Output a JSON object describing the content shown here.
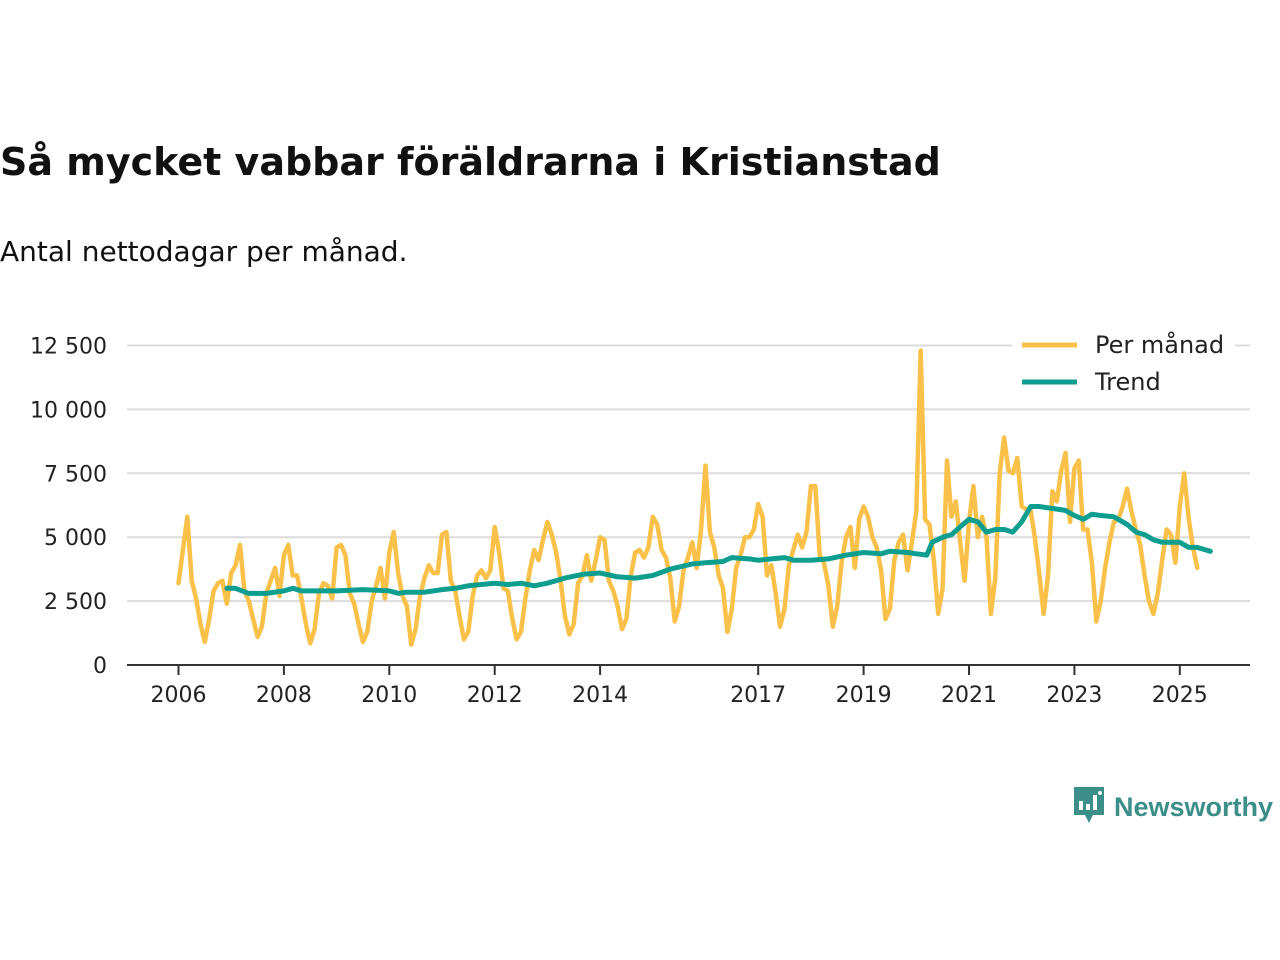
{
  "header": {
    "title": "Så mycket vabbar föräldrarna i Kristianstad",
    "subtitle": "Antal nettodagar per månad."
  },
  "brand": {
    "name": "Newsworthy",
    "icon": "bar-chart-speech-bubble-icon",
    "color": "#3c8f88"
  },
  "colors": {
    "monthly": "#f9c14a",
    "trend": "#0e9e8f",
    "grid": "#dcdcdc",
    "axis": "#333333"
  },
  "chart_data": {
    "type": "line",
    "title": "Så mycket vabbar föräldrarna i Kristianstad",
    "subtitle": "Antal nettodagar per månad.",
    "xlabel": "",
    "ylabel": "",
    "ylim": [
      0,
      12500
    ],
    "xlim": [
      2005.25,
      2026.3
    ],
    "grid": true,
    "legend_position": "top-right",
    "y_ticks": [
      {
        "value": 0,
        "label": "0"
      },
      {
        "value": 2500,
        "label": "2 500"
      },
      {
        "value": 5000,
        "label": "5 000"
      },
      {
        "value": 7500,
        "label": "7 500"
      },
      {
        "value": 10000,
        "label": "10 000"
      },
      {
        "value": 12500,
        "label": "12 500"
      }
    ],
    "x_ticks": [
      {
        "value": 2006,
        "label": "2006"
      },
      {
        "value": 2008,
        "label": "2008"
      },
      {
        "value": 2010,
        "label": "2010"
      },
      {
        "value": 2012,
        "label": "2012"
      },
      {
        "value": 2014,
        "label": "2014"
      },
      {
        "value": 2017,
        "label": "2017"
      },
      {
        "value": 2019,
        "label": "2019"
      },
      {
        "value": 2021,
        "label": "2021"
      },
      {
        "value": 2023,
        "label": "2023"
      },
      {
        "value": 2025,
        "label": "2025"
      }
    ],
    "series": [
      {
        "name": "Per månad",
        "color": "#f9c14a",
        "x_start": 2006.0,
        "x_step": 0.08333,
        "values": [
          3200,
          4500,
          5800,
          3300,
          2600,
          1600,
          900,
          1800,
          2900,
          3200,
          3300,
          2400,
          3600,
          3900,
          4700,
          2900,
          2500,
          1800,
          1100,
          1500,
          2800,
          3300,
          3800,
          2700,
          4300,
          4700,
          3500,
          3500,
          2600,
          1600,
          850,
          1400,
          2800,
          3200,
          3100,
          2600,
          4600,
          4700,
          4300,
          2800,
          2400,
          1600,
          900,
          1300,
          2500,
          3100,
          3800,
          2600,
          4400,
          5200,
          3600,
          2700,
          2300,
          800,
          1400,
          2700,
          3400,
          3900,
          3600,
          3600,
          5100,
          5200,
          3300,
          2900,
          1900,
          1000,
          1300,
          2700,
          3500,
          3700,
          3400,
          3700,
          5400,
          4400,
          3000,
          2900,
          1800,
          1000,
          1300,
          2600,
          3700,
          4500,
          4100,
          4900,
          5600,
          5100,
          4400,
          3300,
          1900,
          1200,
          1600,
          3200,
          3500,
          4300,
          3300,
          4100,
          5000,
          4900,
          3300,
          2900,
          2300,
          1400,
          1800,
          3500,
          4400,
          4500,
          4200,
          4600,
          5800,
          5500,
          4500,
          4200,
          3400,
          1700,
          2300,
          3700,
          4200,
          4800,
          3800,
          5300,
          7800,
          5200,
          4600,
          3500,
          3000,
          1300,
          2200,
          3800,
          4300,
          5000,
          5000,
          5300,
          6300,
          5800,
          3500,
          3900,
          2800,
          1500,
          2200,
          3900,
          4500,
          5100,
          4600,
          5200,
          7000,
          7000,
          4300,
          4000,
          3100,
          1500,
          2300,
          4000,
          5000,
          5400,
          3800,
          5700,
          6200,
          5800,
          5000,
          4600,
          3700,
          1800,
          2200,
          4100,
          4800,
          5100,
          3700,
          4800,
          6000,
          12300,
          5700,
          5500,
          4100,
          2000,
          3000,
          8000,
          5800,
          6400,
          4800,
          3300,
          5600,
          7000,
          5000,
          5800,
          5000,
          2000,
          3400,
          7500,
          8900,
          7600,
          7500,
          8100,
          6200,
          6100,
          6100,
          5000,
          3600,
          2000,
          3500,
          6800,
          6400,
          7600,
          8300,
          5600,
          7700,
          8000,
          5300,
          5300,
          4000,
          1700,
          2500,
          3800,
          4800,
          5600,
          5700,
          6200,
          6900,
          6000,
          5300,
          4700,
          3500,
          2500,
          2000,
          2800,
          4100,
          5300,
          5100,
          4000,
          6200,
          7500,
          5800,
          4600,
          3800
        ]
      },
      {
        "name": "Trend",
        "color": "#0e9e8f",
        "points": [
          [
            2006.92,
            3000
          ],
          [
            2007.08,
            3000
          ],
          [
            2007.33,
            2800
          ],
          [
            2007.67,
            2800
          ],
          [
            2008.0,
            2900
          ],
          [
            2008.17,
            3000
          ],
          [
            2008.33,
            2900
          ],
          [
            2008.67,
            2900
          ],
          [
            2009.0,
            2900
          ],
          [
            2009.5,
            2950
          ],
          [
            2010.0,
            2900
          ],
          [
            2010.17,
            2800
          ],
          [
            2010.33,
            2850
          ],
          [
            2010.67,
            2850
          ],
          [
            2011.0,
            2950
          ],
          [
            2011.25,
            3000
          ],
          [
            2011.5,
            3100
          ],
          [
            2011.75,
            3150
          ],
          [
            2012.0,
            3200
          ],
          [
            2012.25,
            3150
          ],
          [
            2012.5,
            3200
          ],
          [
            2012.75,
            3100
          ],
          [
            2013.0,
            3200
          ],
          [
            2013.33,
            3400
          ],
          [
            2013.67,
            3550
          ],
          [
            2014.0,
            3600
          ],
          [
            2014.33,
            3450
          ],
          [
            2014.67,
            3400
          ],
          [
            2015.0,
            3500
          ],
          [
            2015.33,
            3750
          ],
          [
            2015.75,
            3950
          ],
          [
            2016.0,
            4000
          ],
          [
            2016.33,
            4050
          ],
          [
            2016.5,
            4200
          ],
          [
            2016.83,
            4150
          ],
          [
            2017.0,
            4100
          ],
          [
            2017.25,
            4150
          ],
          [
            2017.5,
            4200
          ],
          [
            2017.67,
            4100
          ],
          [
            2018.0,
            4100
          ],
          [
            2018.33,
            4150
          ],
          [
            2018.67,
            4300
          ],
          [
            2019.0,
            4400
          ],
          [
            2019.33,
            4350
          ],
          [
            2019.5,
            4450
          ],
          [
            2019.83,
            4400
          ],
          [
            2020.0,
            4350
          ],
          [
            2020.2,
            4300
          ],
          [
            2020.3,
            4800
          ],
          [
            2020.5,
            5000
          ],
          [
            2020.67,
            5100
          ],
          [
            2020.83,
            5400
          ],
          [
            2021.0,
            5700
          ],
          [
            2021.17,
            5600
          ],
          [
            2021.33,
            5200
          ],
          [
            2021.5,
            5300
          ],
          [
            2021.67,
            5300
          ],
          [
            2021.83,
            5200
          ],
          [
            2022.0,
            5600
          ],
          [
            2022.17,
            6200
          ],
          [
            2022.33,
            6200
          ],
          [
            2022.5,
            6150
          ],
          [
            2022.67,
            6100
          ],
          [
            2022.83,
            6050
          ],
          [
            2023.0,
            5850
          ],
          [
            2023.17,
            5700
          ],
          [
            2023.33,
            5900
          ],
          [
            2023.5,
            5850
          ],
          [
            2023.75,
            5800
          ],
          [
            2024.0,
            5500
          ],
          [
            2024.17,
            5200
          ],
          [
            2024.33,
            5100
          ],
          [
            2024.5,
            4900
          ],
          [
            2024.67,
            4800
          ],
          [
            2024.83,
            4800
          ],
          [
            2025.0,
            4800
          ],
          [
            2025.17,
            4600
          ],
          [
            2025.33,
            4600
          ],
          [
            2025.58,
            4450
          ]
        ]
      }
    ]
  }
}
